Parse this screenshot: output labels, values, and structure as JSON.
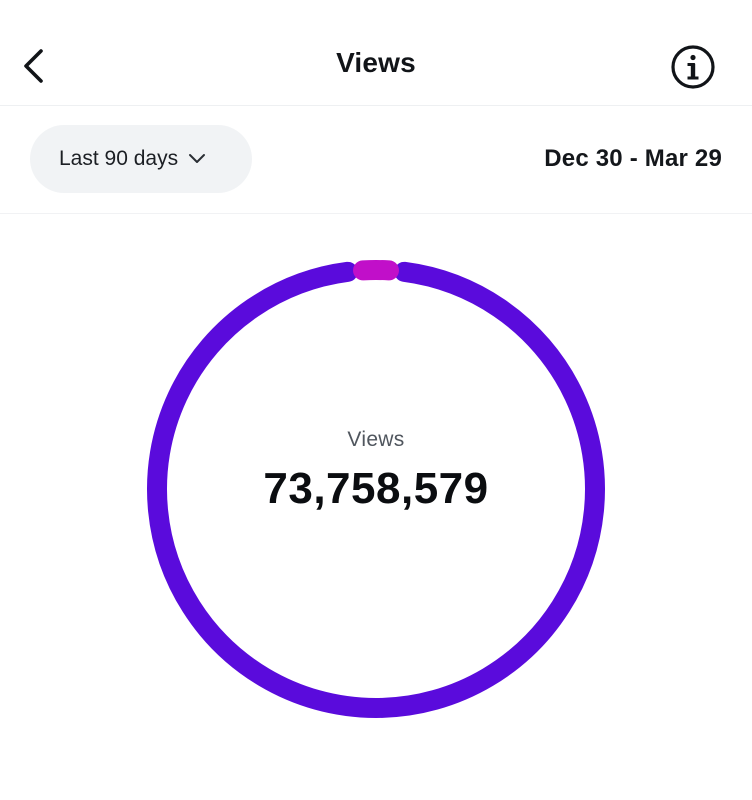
{
  "header": {
    "title": "Views",
    "back_icon": "chevron-left-icon",
    "info_icon": "info-circle-icon"
  },
  "filter": {
    "range_label": "Last 90 days",
    "range_icon": "chevron-down-icon",
    "date_range": "Dec 30 - Mar 29"
  },
  "summary": {
    "label": "Views",
    "value": "73,758,579"
  },
  "colors": {
    "primary_segment": "#5a0bdc",
    "secondary_segment": "#c10fc9",
    "pill_background": "#f1f3f5"
  },
  "ring_chart": {
    "segments": [
      {
        "share": 0.97,
        "color": "#5a0bdc"
      },
      {
        "share": 0.03,
        "color": "#c10fc9"
      }
    ]
  }
}
